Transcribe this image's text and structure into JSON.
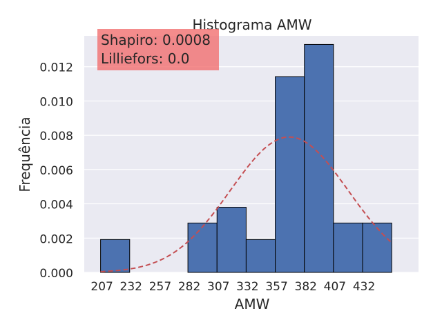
{
  "chart_data": {
    "type": "bar",
    "title": "Histograma AMW",
    "xlabel": "AMW",
    "ylabel": "Frequência",
    "bin_width": 25,
    "bin_starts": [
      207,
      232,
      257,
      282,
      307,
      332,
      357,
      382,
      407,
      432
    ],
    "values": [
      0.00192,
      0,
      0,
      0.00288,
      0.0038,
      0.00192,
      0.01142,
      0.0133,
      0.00288,
      0.00288
    ],
    "x_ticks": [
      207,
      232,
      257,
      282,
      307,
      332,
      357,
      382,
      407,
      432
    ],
    "xlim": [
      193,
      480
    ],
    "y_ticks": [
      "0.000",
      "0.002",
      "0.004",
      "0.006",
      "0.008",
      "0.010",
      "0.012"
    ],
    "ylim": [
      0,
      0.0138
    ],
    "normal_fit": {
      "mean": 369,
      "std": 50.5,
      "x_range": [
        207,
        457
      ]
    },
    "grid": true,
    "colors": {
      "bar": "#4c72b0",
      "bar_edge": "#000000",
      "curve": "#c44e52",
      "background": "#eaeaf2"
    }
  },
  "annotation": {
    "line1": "Shapiro: 0.0008",
    "line2": "Lilliefors: 0.0",
    "background": "#f28e8e"
  }
}
